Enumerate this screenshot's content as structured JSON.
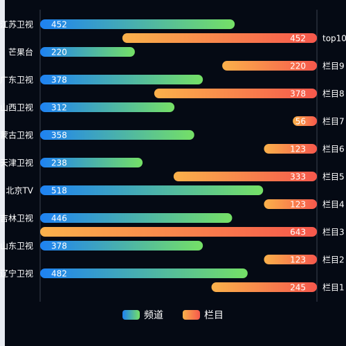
{
  "chart_data": {
    "type": "bar",
    "orientation": "horizontal",
    "xlim": [
      0,
      643
    ],
    "grid": false,
    "legend_position": "bottom-center",
    "series": [
      {
        "name": "频道",
        "colors": [
          "#1e82f2",
          "#75e066"
        ],
        "categories": [
          "江苏卫视",
          "芒果台",
          "广东卫视",
          "山西卫视",
          "蒙古卫视",
          "天津卫视",
          "北京TV",
          "吉林卫视",
          "山东卫视",
          "辽宁卫视"
        ],
        "values": [
          452,
          220,
          378,
          312,
          358,
          238,
          518,
          446,
          378,
          482
        ]
      },
      {
        "name": "栏目",
        "colors": [
          "#fbb14b",
          "#f6584c"
        ],
        "categories": [
          "top10",
          "栏目9",
          "栏目8",
          "栏目7",
          "栏目6",
          "栏目5",
          "栏目4",
          "栏目3",
          "栏目2",
          "栏目1"
        ],
        "values": [
          452,
          220,
          378,
          56,
          123,
          333,
          123,
          643,
          123,
          245
        ]
      }
    ]
  }
}
